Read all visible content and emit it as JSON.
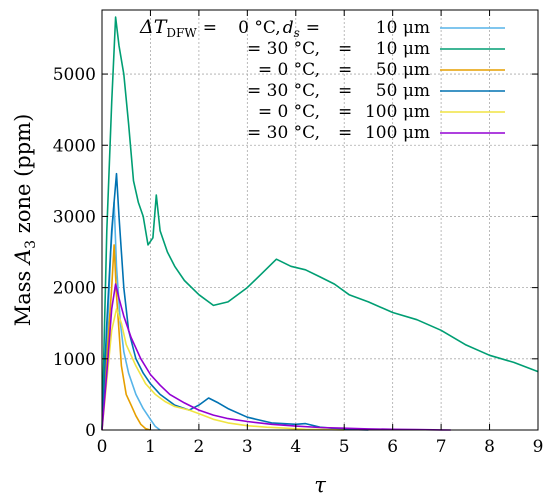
{
  "chart_data": {
    "type": "line",
    "xlabel": "τ",
    "ylabel": "Mass A3 zone (ppm)",
    "xlim": [
      0,
      9
    ],
    "ylim": [
      0,
      5900
    ],
    "xticks": [
      "0",
      "1",
      "2",
      "3",
      "4",
      "5",
      "6",
      "7",
      "8",
      "9"
    ],
    "yticks": [
      "0",
      "1000",
      "2000",
      "3000",
      "4000",
      "5000"
    ],
    "grid": true,
    "legend_position": "top-right",
    "series": [
      {
        "name": "ΔT_DFW = 0°C, d_s = 10 μm",
        "legend_parts": [
          "ΔT",
          "DFW",
          "=",
          "0 °C,",
          "d",
          "s",
          "=",
          "10 μm"
        ],
        "color": "#56b4e9",
        "x": [
          0,
          0.1,
          0.18,
          0.25,
          0.3,
          0.38,
          0.45,
          0.55,
          0.7,
          0.85,
          1.0,
          1.1,
          1.2
        ],
        "y": [
          0,
          1200,
          2500,
          3200,
          2300,
          1500,
          1100,
          800,
          500,
          300,
          150,
          50,
          0
        ]
      },
      {
        "name": "= 30°C, = 10 μm",
        "legend_parts": [
          "= 30 °C,",
          "=",
          "10 μm"
        ],
        "color": "#009e73",
        "x": [
          0,
          0.1,
          0.2,
          0.28,
          0.35,
          0.45,
          0.55,
          0.65,
          0.75,
          0.85,
          0.95,
          1.05,
          1.12,
          1.2,
          1.35,
          1.5,
          1.7,
          2.0,
          2.3,
          2.6,
          3.0,
          3.3,
          3.6,
          3.9,
          4.2,
          4.5,
          4.8,
          5.1,
          5.5,
          6.0,
          6.5,
          7.0,
          7.5,
          8.0,
          8.5,
          9.0
        ],
        "y": [
          0,
          2800,
          4600,
          5800,
          5400,
          5000,
          4300,
          3500,
          3200,
          3000,
          2600,
          2700,
          3300,
          2800,
          2500,
          2300,
          2100,
          1900,
          1750,
          1800,
          2000,
          2200,
          2400,
          2300,
          2250,
          2150,
          2050,
          1900,
          1800,
          1650,
          1550,
          1400,
          1200,
          1050,
          950,
          820
        ]
      },
      {
        "name": "= 0°C, = 50 μm",
        "legend_parts": [
          "= 0 °C,",
          "=",
          "50 μm"
        ],
        "color": "#e69f00",
        "x": [
          0,
          0.1,
          0.2,
          0.25,
          0.3,
          0.4,
          0.5,
          0.6,
          0.7,
          0.8,
          0.9,
          1.0
        ],
        "y": [
          0,
          1000,
          2000,
          2600,
          1900,
          900,
          500,
          350,
          200,
          80,
          20,
          0
        ]
      },
      {
        "name": "= 30°C, = 50 μm",
        "legend_parts": [
          "= 30 °C,",
          "=",
          "50 μm"
        ],
        "color": "#0072b2",
        "x": [
          0,
          0.1,
          0.2,
          0.3,
          0.35,
          0.45,
          0.55,
          0.7,
          0.85,
          1.0,
          1.2,
          1.5,
          1.8,
          2.0,
          2.2,
          2.4,
          2.6,
          3.0,
          3.5,
          4.0,
          4.2,
          4.5,
          5.0,
          5.5
        ],
        "y": [
          0,
          1500,
          2800,
          3600,
          3000,
          2000,
          1400,
          1000,
          800,
          650,
          500,
          350,
          280,
          350,
          450,
          380,
          300,
          180,
          100,
          80,
          90,
          40,
          10,
          0
        ]
      },
      {
        "name": "= 0°C, = 100 μm",
        "legend_parts": [
          "= 0 °C,",
          "=",
          "100 μm"
        ],
        "color": "#f0e442",
        "x": [
          0,
          0.1,
          0.2,
          0.3,
          0.4,
          0.5,
          0.7,
          0.9,
          1.1,
          1.3,
          1.5,
          1.8,
          2.0,
          2.3,
          2.6,
          3.0,
          3.4,
          3.8,
          4.2,
          4.6,
          5.0
        ],
        "y": [
          0,
          700,
          1400,
          1700,
          1500,
          1200,
          900,
          650,
          500,
          400,
          330,
          280,
          230,
          150,
          100,
          60,
          40,
          25,
          10,
          5,
          0
        ]
      },
      {
        "name": "= 30°C, = 100 μm",
        "legend_parts": [
          "= 30 °C,",
          "=",
          "100 μm"
        ],
        "color": "#9400d3",
        "x": [
          0,
          0.1,
          0.2,
          0.28,
          0.35,
          0.45,
          0.6,
          0.8,
          1.0,
          1.2,
          1.4,
          1.7,
          2.0,
          2.3,
          2.6,
          3.0,
          3.5,
          4.0,
          4.5,
          5.0,
          5.5,
          6.0,
          6.5,
          7.0,
          7.2
        ],
        "y": [
          0,
          800,
          1700,
          2050,
          1850,
          1600,
          1300,
          1000,
          780,
          630,
          500,
          380,
          280,
          210,
          160,
          120,
          80,
          55,
          35,
          25,
          15,
          10,
          5,
          2,
          0
        ]
      }
    ]
  }
}
